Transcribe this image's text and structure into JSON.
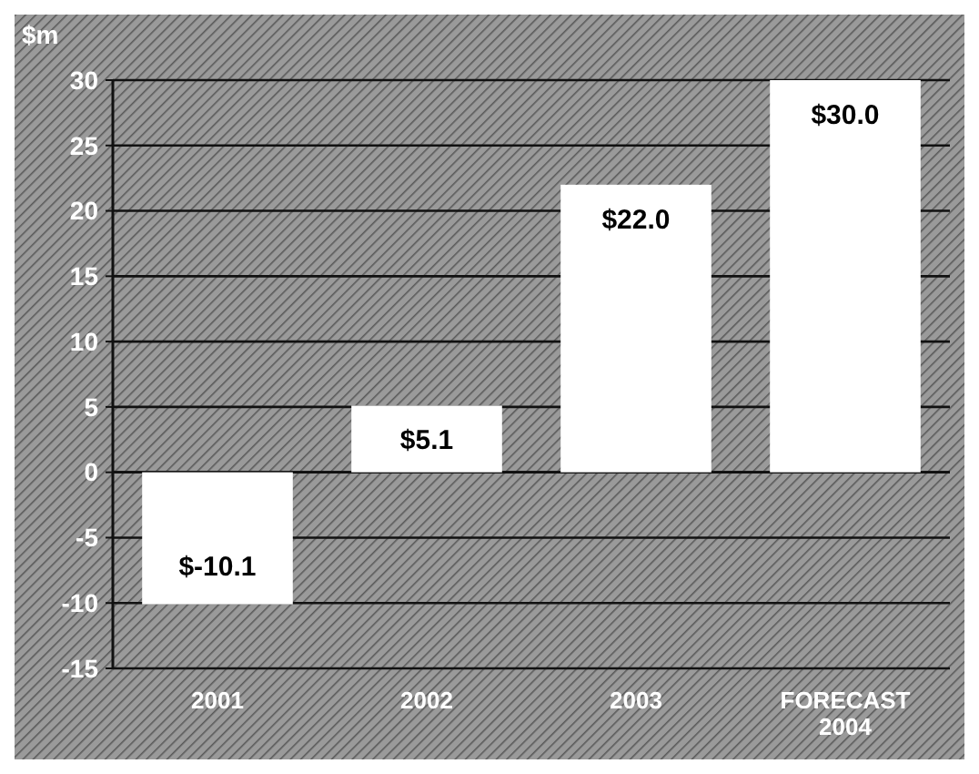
{
  "chart_data": {
    "type": "bar",
    "ylabel": "$m",
    "categories": [
      "2001",
      "2002",
      "2003",
      "FORECAST\n2004"
    ],
    "values": [
      -10.1,
      5.1,
      22.0,
      30.0
    ],
    "value_labels": [
      "$-10.1",
      "$5.1",
      "$22.0",
      "$30.0"
    ],
    "color": "#ffffff",
    "ylim": [
      -15,
      30
    ],
    "yticks": [
      -15,
      -10,
      -5,
      0,
      5,
      10,
      15,
      20,
      25,
      30
    ],
    "grid": "y"
  }
}
